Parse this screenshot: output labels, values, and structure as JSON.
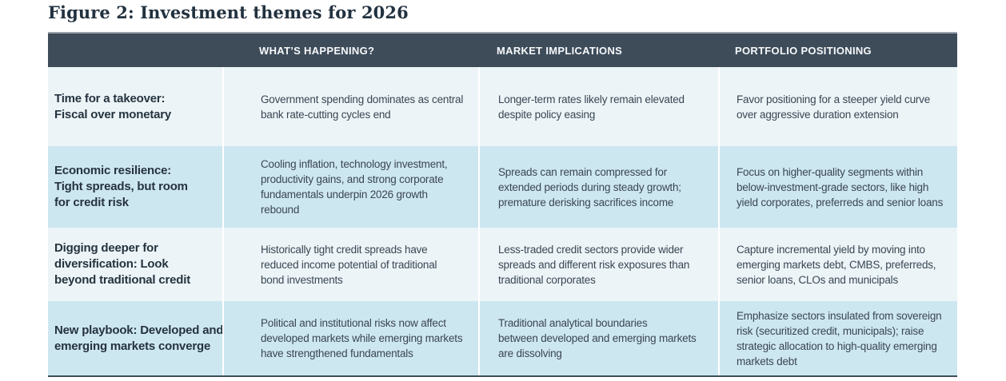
{
  "figure": {
    "title": "Figure 2: Investment themes for 2026"
  },
  "table": {
    "columns": [
      {
        "key": "theme",
        "label": ""
      },
      {
        "key": "happening",
        "label": "WHAT’S HAPPENING?"
      },
      {
        "key": "implications",
        "label": "MARKET IMPLICATIONS"
      },
      {
        "key": "positioning",
        "label": "PORTFOLIO POSITIONING"
      }
    ],
    "rows": [
      {
        "theme": "Time for a takeover:\nFiscal over monetary",
        "happening": "Government spending dominates as central\nbank rate-cutting cycles end",
        "implications": "Longer-term rates likely remain elevated\ndespite policy easing",
        "positioning": "Favor positioning for a steeper yield curve\nover aggressive duration extension"
      },
      {
        "theme": "Economic resilience:\nTight spreads, but room\nfor credit risk",
        "happening": "Cooling inflation, technology investment,\nproductivity gains, and strong corporate\nfundamentals underpin 2026 growth\nrebound",
        "implications": "Spreads can remain compressed for\nextended periods during steady growth;\npremature derisking sacrifices income",
        "positioning": "Focus on higher-quality segments within\nbelow-investment-grade sectors, like high\nyield corporates, preferreds and senior loans"
      },
      {
        "theme": "Digging deeper for\ndiversification: Look\nbeyond traditional credit",
        "happening": "Historically tight credit spreads have\nreduced income potential of traditional\nbond investments",
        "implications": "Less-traded credit sectors provide wider\nspreads and different risk exposures than\ntraditional corporates",
        "positioning": "Capture incremental yield by moving into\nemerging markets debt, CMBS, preferreds,\nsenior loans, CLOs and municipals"
      },
      {
        "theme": "New playbook: Developed and\nemerging markets converge",
        "happening": "Political and institutional risks now affect\ndeveloped markets while emerging markets\nhave strengthened fundamentals",
        "implications": "Traditional analytical boundaries\nbetween developed and emerging markets\nare dissolving",
        "positioning": "Emphasize sectors insulated from sovereign\nrisk (securitized credit, municipals); raise\nstrategic allocation to high-quality emerging\nmarkets debt"
      }
    ]
  },
  "colors": {
    "header_bg": "#3e4c5a",
    "header_text": "#f7f9fa",
    "row_light": "#ecf4f7",
    "row_blue": "#cde7f1",
    "title_text": "#22313f",
    "theme_text": "#25333f",
    "body_text": "#3a4653",
    "top_border": "#99a2ab",
    "bottom_border": "#3e4c5a",
    "column_divider": "#ffffff"
  }
}
